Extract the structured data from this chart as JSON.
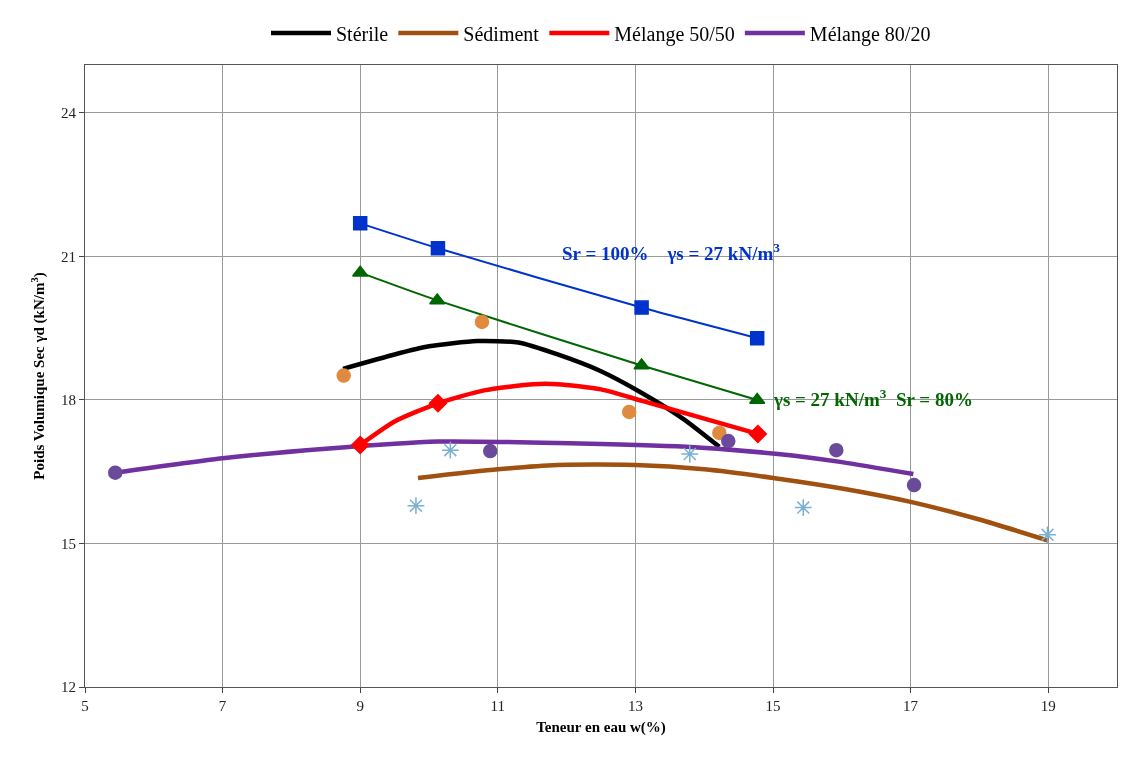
{
  "chart_data": {
    "type": "line",
    "xlabel": "Teneur en eau w(%)",
    "ylabel": "Poids Volumique Sec γd (kN/m$^{3}$)",
    "xlim": [
      5,
      20
    ],
    "xticks": [
      5,
      7,
      9,
      11,
      13,
      15,
      17,
      19
    ],
    "ylim": [
      12,
      25
    ],
    "yticks": [
      12,
      15,
      18,
      21,
      24
    ],
    "grid": true,
    "legend": "top",
    "series": [
      {
        "name": "Stérile",
        "color": "#000000",
        "marker": "none",
        "x": [
          8.75,
          9.5,
          10.0,
          10.7,
          11.3,
          11.87,
          12.5,
          13.1,
          13.7,
          14.22
        ],
        "values": [
          18.65,
          18.95,
          19.12,
          19.23,
          19.2,
          18.95,
          18.6,
          18.14,
          17.6,
          17.02
        ]
      },
      {
        "name": "Sédiment",
        "color": "#a0500f",
        "marker": "none",
        "x": [
          9.84,
          11.0,
          11.87,
          13.0,
          14.0,
          15.0,
          16.0,
          17.0,
          18.0,
          19.0
        ],
        "values": [
          16.37,
          16.55,
          16.64,
          16.64,
          16.55,
          16.37,
          16.15,
          15.87,
          15.5,
          15.06
        ]
      },
      {
        "name": "Mélange 50/50",
        "color": "#ff0000",
        "marker": "none",
        "x": [
          9.0,
          9.5,
          10.13,
          10.8,
          11.52,
          11.87,
          12.5,
          13.1,
          13.9,
          14.78
        ],
        "values": [
          17.06,
          17.55,
          17.93,
          18.2,
          18.33,
          18.33,
          18.22,
          17.98,
          17.65,
          17.29
        ]
      },
      {
        "name": "Mélange 80/20",
        "color": "#7030a0",
        "marker": "none",
        "x": [
          5.44,
          7.0,
          8.5,
          10.13,
          11.87,
          13.74,
          15.07,
          16.0,
          17.04
        ],
        "values": [
          16.48,
          16.78,
          16.98,
          17.13,
          17.1,
          17.02,
          16.87,
          16.7,
          16.45
        ]
      },
      {
        "color": "#0033cc",
        "marker": "square",
        "x": [
          9.0,
          10.13,
          13.09,
          14.77
        ],
        "values": [
          21.69,
          21.17,
          19.93,
          19.29
        ]
      },
      {
        "color": "#006600",
        "marker": "triangle",
        "x": [
          9.0,
          10.12,
          13.09,
          14.77
        ],
        "values": [
          20.66,
          20.08,
          18.72,
          18.0
        ]
      },
      {
        "color": "#e08a40",
        "type": "scatter",
        "marker": "circle",
        "x": [
          8.76,
          10.77,
          12.91,
          14.22
        ],
        "values": [
          18.51,
          19.63,
          17.75,
          17.31
        ]
      },
      {
        "color": "#ff0000",
        "type": "scatter",
        "marker": "diamond",
        "x": [
          9.0,
          10.13,
          14.78
        ],
        "values": [
          17.06,
          17.93,
          17.29
        ]
      },
      {
        "color": "#6a4a9a",
        "type": "scatter",
        "marker": "circle",
        "x": [
          5.44,
          10.89,
          14.35,
          15.92,
          17.05
        ],
        "values": [
          16.48,
          16.93,
          17.14,
          16.95,
          16.22
        ]
      },
      {
        "color": "#7ab0d0",
        "type": "scatter",
        "marker": "cross",
        "x": [
          9.81,
          10.31,
          13.79,
          15.44,
          18.99
        ],
        "values": [
          15.79,
          16.95,
          16.87,
          15.75,
          15.18
        ]
      }
    ],
    "annotations": [
      "Sr = 100%    γs = 27 kN/m$^{3}$",
      "γs = 27 kN/m$^{3}$  Sr = 80%"
    ]
  }
}
